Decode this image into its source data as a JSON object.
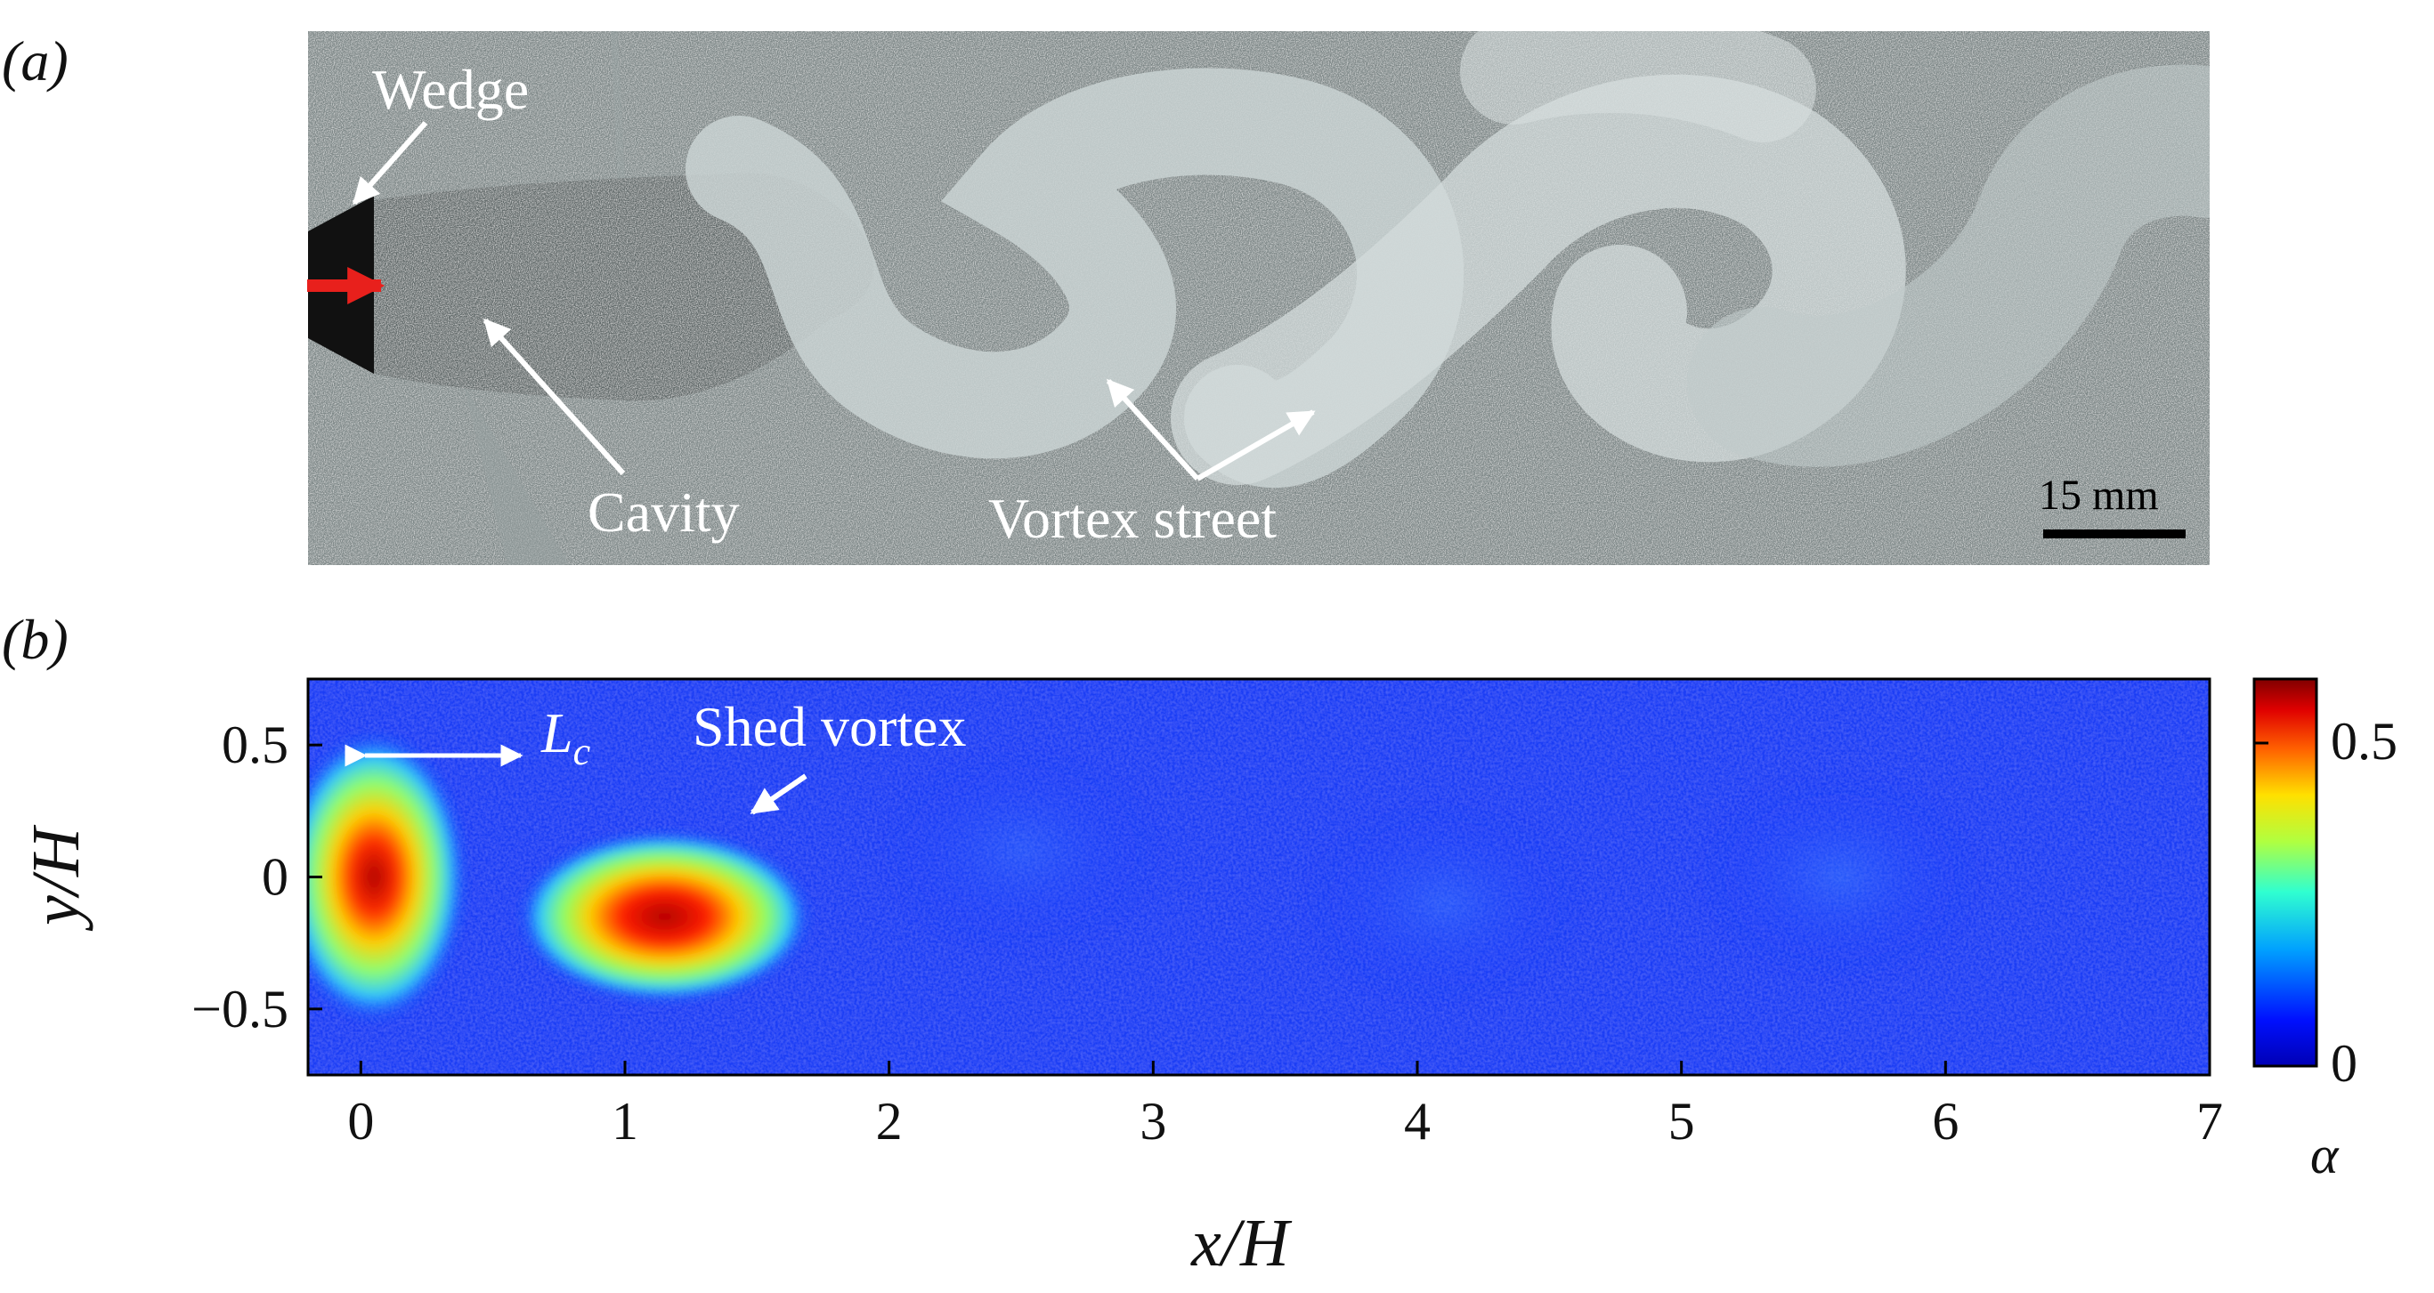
{
  "panel_a": {
    "label": "(a)",
    "annotations": {
      "wedge": "Wedge",
      "cavity": "Cavity",
      "vortex_street": "Vortex street"
    },
    "scale_bar": "15 mm",
    "flow_arrow_color": "#e8201c"
  },
  "panel_b": {
    "label": "(b)",
    "annotations": {
      "cavity_length_symbol": "L",
      "cavity_length_subscript": "c",
      "shed_vortex": "Shed vortex"
    },
    "colorbar": {
      "label": "α",
      "tick_labels": [
        "0.5",
        "0"
      ],
      "colormap": "jet",
      "range": [
        0,
        0.6
      ]
    }
  },
  "chart_data": {
    "type": "heatmap",
    "title": "",
    "xlabel": "x/H",
    "ylabel": "y/H",
    "xlim": [
      -0.2,
      7
    ],
    "ylim": [
      0.75,
      -0.75
    ],
    "x_ticks": [
      "0",
      "1",
      "2",
      "3",
      "4",
      "5",
      "6",
      "7"
    ],
    "y_ticks": [
      "−0.5",
      "0",
      "0.5"
    ],
    "value_label": "α",
    "value_range": [
      0,
      0.6
    ],
    "background_value": 0.05,
    "features": [
      {
        "x": 0.05,
        "y": 0.0,
        "alpha": 0.45
      },
      {
        "x": 1.15,
        "y": -0.15,
        "alpha": 0.55
      },
      {
        "x": 2.5,
        "y": 0.1,
        "alpha": 0.07
      },
      {
        "x": 4.1,
        "y": -0.1,
        "alpha": 0.08
      },
      {
        "x": 5.6,
        "y": 0.0,
        "alpha": 0.09
      }
    ]
  }
}
